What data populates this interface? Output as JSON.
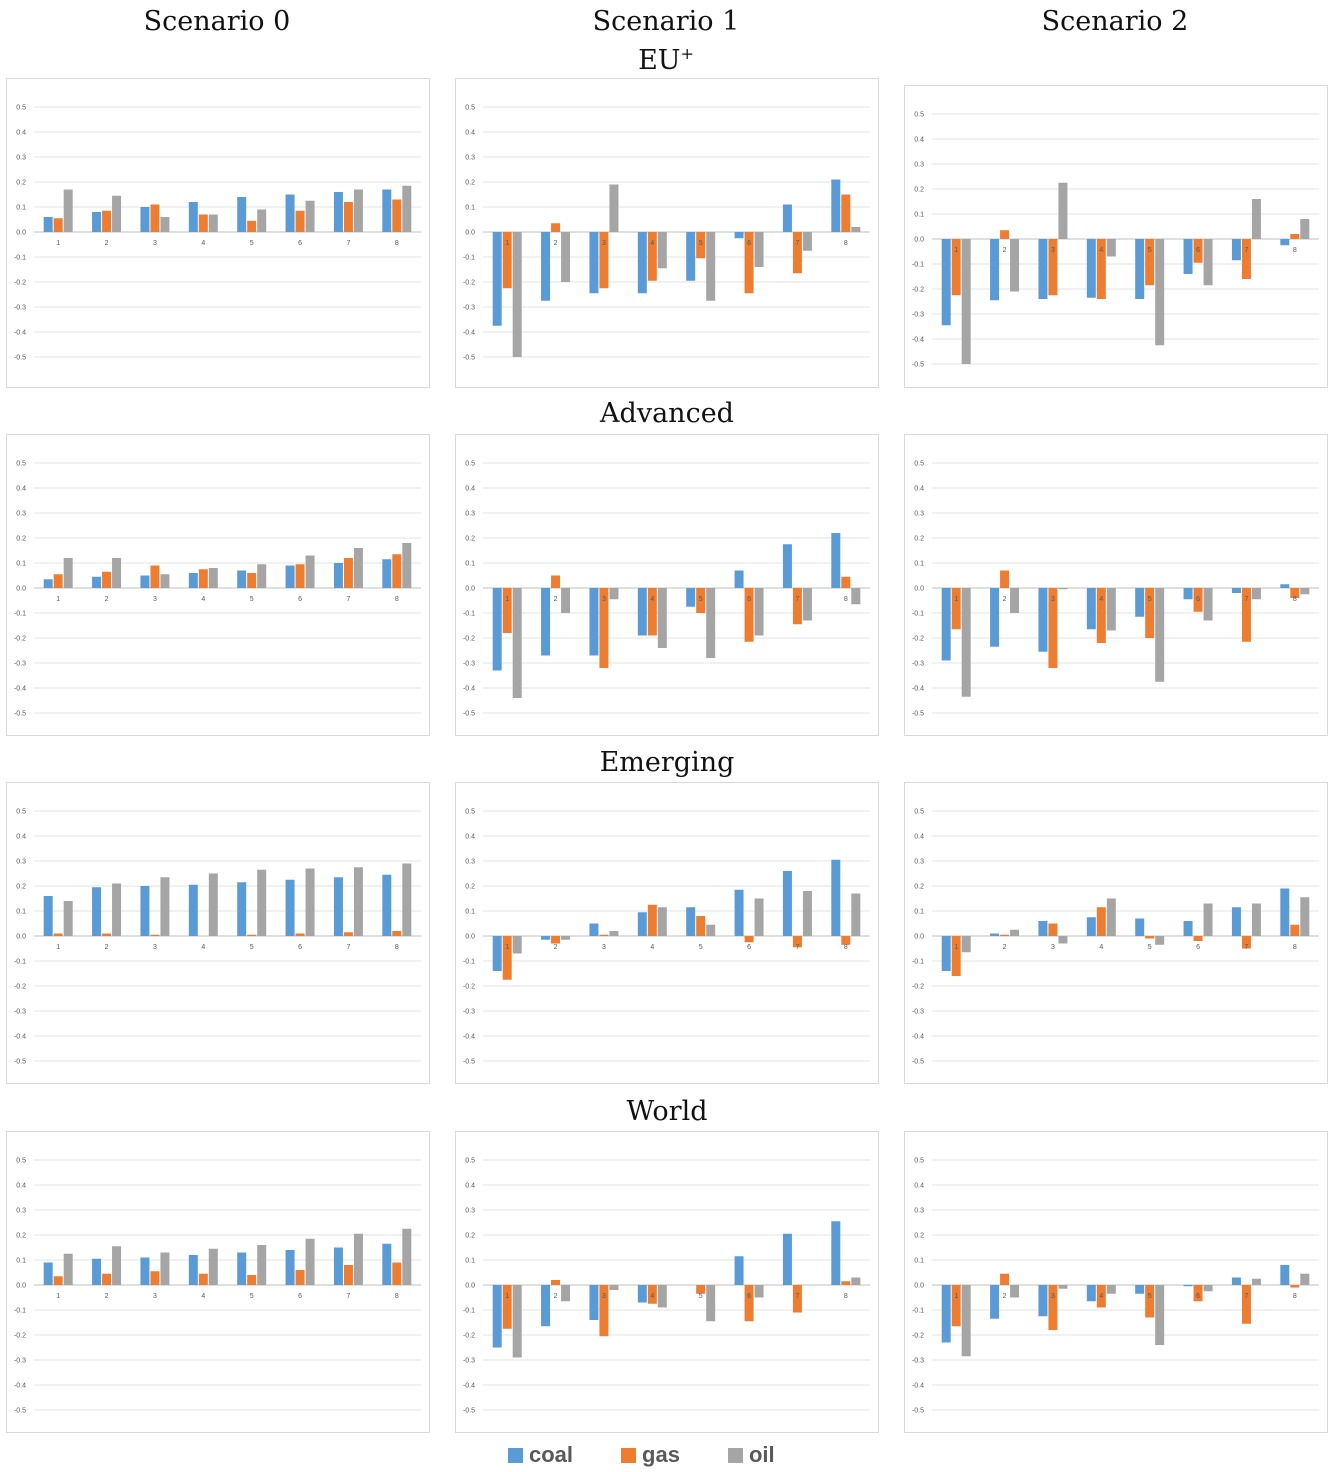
{
  "column_titles": [
    {
      "line1": "Scenario 0",
      "line2": ""
    },
    {
      "line1": "Scenario 1",
      "line2": "EU",
      "sup": "+"
    },
    {
      "line1": "Scenario 2",
      "line2": ""
    }
  ],
  "row_titles": [
    "Advanced",
    "Emerging",
    "World"
  ],
  "colors": {
    "coal": "#5b9bd5",
    "gas": "#ed7d31",
    "oil": "#a5a5a5"
  },
  "legend": [
    {
      "key": "coal",
      "label": "coal"
    },
    {
      "key": "gas",
      "label": "gas"
    },
    {
      "key": "oil",
      "label": "oil"
    }
  ],
  "chart_data": [
    {
      "type": "bar",
      "region": "EU+",
      "scenario": "Scenario 0",
      "categories": [
        "1",
        "2",
        "3",
        "4",
        "5",
        "6",
        "7",
        "8"
      ],
      "ylim": [
        -0.5,
        0.5
      ],
      "yticks": [
        "0.5",
        "0.4",
        "0.3",
        "0.2",
        "0.1",
        "0.0",
        "-0.1",
        "-0.2",
        "-0.3",
        "-0.4",
        "-0.5"
      ],
      "series": [
        {
          "name": "coal",
          "values": [
            0.06,
            0.08,
            0.1,
            0.12,
            0.14,
            0.15,
            0.16,
            0.17
          ]
        },
        {
          "name": "gas",
          "values": [
            0.055,
            0.085,
            0.11,
            0.07,
            0.045,
            0.085,
            0.12,
            0.13
          ]
        },
        {
          "name": "oil",
          "values": [
            0.17,
            0.145,
            0.06,
            0.07,
            0.09,
            0.125,
            0.17,
            0.185
          ]
        }
      ]
    },
    {
      "type": "bar",
      "region": "EU+",
      "scenario": "Scenario 1",
      "categories": [
        "1",
        "2",
        "3",
        "4",
        "5",
        "6",
        "7",
        "8"
      ],
      "ylim": [
        -0.5,
        0.5
      ],
      "yticks": [
        "0.5",
        "0.4",
        "0.3",
        "0.2",
        "0.1",
        "0.0",
        "-0.1",
        "-0.2",
        "-0.3",
        "-0.4",
        "-0.5"
      ],
      "series": [
        {
          "name": "coal",
          "values": [
            -0.375,
            -0.275,
            -0.245,
            -0.245,
            -0.195,
            -0.025,
            0.11,
            0.21
          ]
        },
        {
          "name": "gas",
          "values": [
            -0.225,
            0.035,
            -0.225,
            -0.195,
            -0.105,
            -0.245,
            -0.165,
            0.15
          ]
        },
        {
          "name": "oil",
          "values": [
            -0.5,
            -0.2,
            0.19,
            -0.145,
            -0.275,
            -0.14,
            -0.075,
            0.02
          ]
        }
      ]
    },
    {
      "type": "bar",
      "region": "EU+",
      "scenario": "Scenario 2",
      "categories": [
        "1",
        "2",
        "3",
        "4",
        "5",
        "6",
        "7",
        "8"
      ],
      "ylim": [
        -0.5,
        0.5
      ],
      "yticks": [
        "0.5",
        "0.4",
        "0.3",
        "0.2",
        "0.1",
        "0.0",
        "-0.1",
        "-0.2",
        "-0.3",
        "-0.4",
        "-0.5"
      ],
      "series": [
        {
          "name": "coal",
          "values": [
            -0.345,
            -0.245,
            -0.24,
            -0.235,
            -0.24,
            -0.14,
            -0.085,
            -0.025
          ]
        },
        {
          "name": "gas",
          "values": [
            -0.225,
            0.035,
            -0.225,
            -0.24,
            -0.185,
            -0.095,
            -0.16,
            0.02
          ]
        },
        {
          "name": "oil",
          "values": [
            -0.5,
            -0.21,
            0.225,
            -0.07,
            -0.425,
            -0.185,
            0.16,
            0.08
          ]
        }
      ]
    },
    {
      "type": "bar",
      "region": "Advanced",
      "scenario": "Scenario 0",
      "categories": [
        "1",
        "2",
        "3",
        "4",
        "5",
        "6",
        "7",
        "8"
      ],
      "ylim": [
        -0.5,
        0.5
      ],
      "yticks": [
        "0.5",
        "0.4",
        "0.3",
        "0.2",
        "0.1",
        "0.0",
        "-0.1",
        "-0.2",
        "-0.3",
        "-0.4",
        "-0.5"
      ],
      "series": [
        {
          "name": "coal",
          "values": [
            0.035,
            0.045,
            0.05,
            0.06,
            0.07,
            0.09,
            0.1,
            0.115
          ]
        },
        {
          "name": "gas",
          "values": [
            0.055,
            0.065,
            0.09,
            0.075,
            0.06,
            0.095,
            0.12,
            0.135
          ]
        },
        {
          "name": "oil",
          "values": [
            0.12,
            0.12,
            0.055,
            0.08,
            0.095,
            0.13,
            0.16,
            0.18
          ]
        }
      ]
    },
    {
      "type": "bar",
      "region": "Advanced",
      "scenario": "Scenario 1",
      "categories": [
        "1",
        "2",
        "3",
        "4",
        "5",
        "6",
        "7",
        "8"
      ],
      "ylim": [
        -0.5,
        0.5
      ],
      "yticks": [
        "0.5",
        "0.4",
        "0.3",
        "0.2",
        "0.1",
        "0.0",
        "-0.1",
        "-0.2",
        "-0.3",
        "-0.4",
        "-0.5"
      ],
      "series": [
        {
          "name": "coal",
          "values": [
            -0.33,
            -0.27,
            -0.27,
            -0.19,
            -0.075,
            0.07,
            0.175,
            0.22
          ]
        },
        {
          "name": "gas",
          "values": [
            -0.18,
            0.05,
            -0.32,
            -0.19,
            -0.1,
            -0.215,
            -0.145,
            0.045
          ]
        },
        {
          "name": "oil",
          "values": [
            -0.44,
            -0.1,
            -0.045,
            -0.24,
            -0.28,
            -0.19,
            -0.13,
            -0.065
          ]
        }
      ]
    },
    {
      "type": "bar",
      "region": "Advanced",
      "scenario": "Scenario 2",
      "categories": [
        "1",
        "2",
        "3",
        "4",
        "5",
        "6",
        "7",
        "8"
      ],
      "ylim": [
        -0.5,
        0.5
      ],
      "yticks": [
        "0.5",
        "0.4",
        "0.3",
        "0.2",
        "0.1",
        "0.0",
        "-0.1",
        "-0.2",
        "-0.3",
        "-0.4",
        "-0.5"
      ],
      "series": [
        {
          "name": "coal",
          "values": [
            -0.29,
            -0.235,
            -0.255,
            -0.165,
            -0.115,
            -0.045,
            -0.02,
            0.015
          ]
        },
        {
          "name": "gas",
          "values": [
            -0.165,
            0.07,
            -0.32,
            -0.22,
            -0.2,
            -0.095,
            -0.215,
            -0.04
          ]
        },
        {
          "name": "oil",
          "values": [
            -0.435,
            -0.1,
            -0.005,
            -0.17,
            -0.375,
            -0.13,
            -0.045,
            -0.025
          ]
        }
      ]
    },
    {
      "type": "bar",
      "region": "Emerging",
      "scenario": "Scenario 0",
      "categories": [
        "1",
        "2",
        "3",
        "4",
        "5",
        "6",
        "7",
        "8"
      ],
      "ylim": [
        -0.5,
        0.5
      ],
      "yticks": [
        "0.5",
        "0.4",
        "0.3",
        "0.2",
        "0.1",
        "0.0",
        "-0.1",
        "-0.2",
        "-0.3",
        "-0.4",
        "-0.5"
      ],
      "series": [
        {
          "name": "coal",
          "values": [
            0.16,
            0.195,
            0.2,
            0.205,
            0.215,
            0.225,
            0.235,
            0.245
          ]
        },
        {
          "name": "gas",
          "values": [
            0.01,
            0.01,
            0.005,
            0.0,
            0.005,
            0.01,
            0.015,
            0.02
          ]
        },
        {
          "name": "oil",
          "values": [
            0.14,
            0.21,
            0.235,
            0.25,
            0.265,
            0.27,
            0.275,
            0.29
          ]
        }
      ]
    },
    {
      "type": "bar",
      "region": "Emerging",
      "scenario": "Scenario 1",
      "categories": [
        "1",
        "2",
        "3",
        "4",
        "5",
        "6",
        "7",
        "8"
      ],
      "ylim": [
        -0.5,
        0.5
      ],
      "yticks": [
        "0.5",
        "0.4",
        "0.3",
        "0.2",
        "0.1",
        "0.0",
        "-0.1",
        "-0.2",
        "-0.3",
        "-0.4",
        "-0.5"
      ],
      "series": [
        {
          "name": "coal",
          "values": [
            -0.14,
            -0.015,
            0.05,
            0.095,
            0.115,
            0.185,
            0.26,
            0.305
          ]
        },
        {
          "name": "gas",
          "values": [
            -0.175,
            -0.03,
            0.005,
            0.125,
            0.08,
            -0.025,
            -0.045,
            -0.035
          ]
        },
        {
          "name": "oil",
          "values": [
            -0.07,
            -0.015,
            0.02,
            0.115,
            0.045,
            0.15,
            0.18,
            0.17
          ]
        }
      ]
    },
    {
      "type": "bar",
      "region": "Emerging",
      "scenario": "Scenario 2",
      "categories": [
        "1",
        "2",
        "3",
        "4",
        "5",
        "6",
        "7",
        "8"
      ],
      "ylim": [
        -0.5,
        0.5
      ],
      "yticks": [
        "0.5",
        "0.4",
        "0.3",
        "0.2",
        "0.1",
        "0.0",
        "-0.1",
        "-0.2",
        "-0.3",
        "-0.4",
        "-0.5"
      ],
      "series": [
        {
          "name": "coal",
          "values": [
            -0.14,
            0.01,
            0.06,
            0.075,
            0.07,
            0.06,
            0.115,
            0.19
          ]
        },
        {
          "name": "gas",
          "values": [
            -0.16,
            0.005,
            0.05,
            0.115,
            -0.01,
            -0.02,
            -0.05,
            0.045
          ]
        },
        {
          "name": "oil",
          "values": [
            -0.065,
            0.025,
            -0.03,
            0.15,
            -0.035,
            0.13,
            0.13,
            0.155
          ]
        }
      ]
    },
    {
      "type": "bar",
      "region": "World",
      "scenario": "Scenario 0",
      "categories": [
        "1",
        "2",
        "3",
        "4",
        "5",
        "6",
        "7",
        "8"
      ],
      "ylim": [
        -0.5,
        0.5
      ],
      "yticks": [
        "0.5",
        "0.4",
        "0.3",
        "0.2",
        "0.1",
        "0.0",
        "-0.1",
        "-0.2",
        "-0.3",
        "-0.4",
        "-0.5"
      ],
      "series": [
        {
          "name": "coal",
          "values": [
            0.09,
            0.105,
            0.11,
            0.12,
            0.13,
            0.14,
            0.15,
            0.165
          ]
        },
        {
          "name": "gas",
          "values": [
            0.035,
            0.045,
            0.055,
            0.045,
            0.04,
            0.06,
            0.08,
            0.09
          ]
        },
        {
          "name": "oil",
          "values": [
            0.125,
            0.155,
            0.13,
            0.145,
            0.16,
            0.185,
            0.205,
            0.225
          ]
        }
      ]
    },
    {
      "type": "bar",
      "region": "World",
      "scenario": "Scenario 1",
      "categories": [
        "1",
        "2",
        "3",
        "4",
        "5",
        "6",
        "7",
        "8"
      ],
      "ylim": [
        -0.5,
        0.5
      ],
      "yticks": [
        "0.5",
        "0.4",
        "0.3",
        "0.2",
        "0.1",
        "0.0",
        "-0.1",
        "-0.2",
        "-0.3",
        "-0.4",
        "-0.5"
      ],
      "series": [
        {
          "name": "coal",
          "values": [
            -0.25,
            -0.165,
            -0.14,
            -0.07,
            0.0,
            0.115,
            0.205,
            0.255
          ]
        },
        {
          "name": "gas",
          "values": [
            -0.175,
            0.02,
            -0.205,
            -0.075,
            -0.035,
            -0.145,
            -0.11,
            0.015
          ]
        },
        {
          "name": "oil",
          "values": [
            -0.29,
            -0.065,
            -0.02,
            -0.09,
            -0.145,
            -0.05,
            0.0,
            0.03
          ]
        }
      ]
    },
    {
      "type": "bar",
      "region": "World",
      "scenario": "Scenario 2",
      "categories": [
        "1",
        "2",
        "3",
        "4",
        "5",
        "6",
        "7",
        "8"
      ],
      "ylim": [
        -0.5,
        0.5
      ],
      "yticks": [
        "0.5",
        "0.4",
        "0.3",
        "0.2",
        "0.1",
        "0.0",
        "-0.1",
        "-0.2",
        "-0.3",
        "-0.4",
        "-0.5"
      ],
      "series": [
        {
          "name": "coal",
          "values": [
            -0.23,
            -0.135,
            -0.125,
            -0.065,
            -0.035,
            -0.005,
            0.03,
            0.08
          ]
        },
        {
          "name": "gas",
          "values": [
            -0.165,
            0.045,
            -0.18,
            -0.09,
            -0.13,
            -0.065,
            -0.155,
            -0.01
          ]
        },
        {
          "name": "oil",
          "values": [
            -0.285,
            -0.05,
            -0.015,
            -0.035,
            -0.24,
            -0.025,
            0.025,
            0.045
          ]
        }
      ]
    }
  ]
}
